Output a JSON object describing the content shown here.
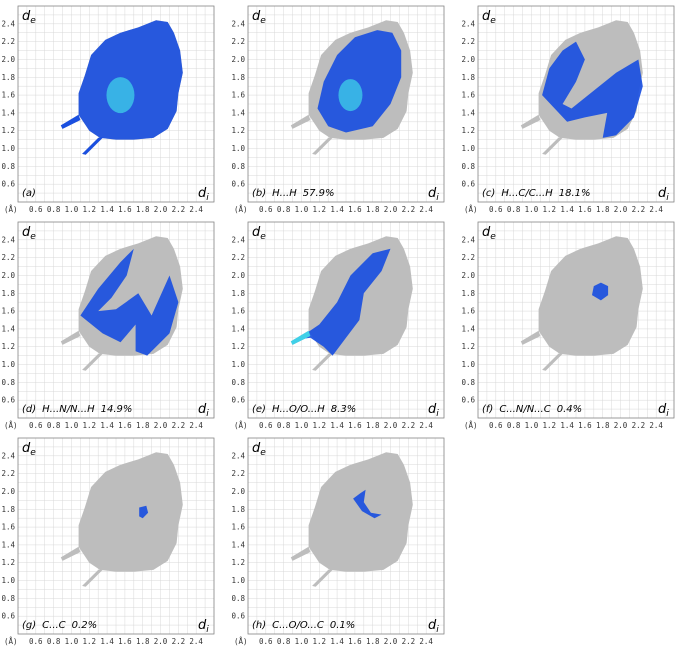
{
  "chart_data": {
    "type": "heatmap",
    "description_axes": {
      "y_axis_label": "d",
      "y_axis_label_sub": "e",
      "x_axis_label": "d",
      "x_axis_label_sub": "i",
      "unit_label": "(Å)",
      "x_ticks": [
        "0.6",
        "0.8",
        "1.0",
        "1.2",
        "1.4",
        "1.6",
        "1.8",
        "2.0",
        "2.2",
        "2.4"
      ],
      "y_ticks": [
        "0.6",
        "0.8",
        "1.0",
        "1.2",
        "1.4",
        "1.6",
        "1.8",
        "2.0",
        "2.2",
        "2.4"
      ],
      "xlim": [
        0.4,
        2.6
      ],
      "ylim": [
        0.4,
        2.6
      ],
      "grid": true
    },
    "colors": {
      "background_fill": "#bdbdbd",
      "highlight": "#1a4fe0",
      "highlight_hot": "#3fd0e8",
      "grid": "#d8d8d8",
      "frame": "#888888"
    },
    "panels": [
      {
        "label": "(a)",
        "contact": "",
        "percent": "",
        "highlight": "full"
      },
      {
        "label": "(b)",
        "contact": "H...H",
        "percent": "57.9%",
        "highlight": "core"
      },
      {
        "label": "(c)",
        "contact": "H...C/C...H",
        "percent": "18.1%",
        "highlight": "wings"
      },
      {
        "label": "(d)",
        "contact": "H...N/N...H",
        "percent": "14.9%",
        "highlight": "forks"
      },
      {
        "label": "(e)",
        "contact": "H...O/O...H",
        "percent": "8.3%",
        "highlight": "spike"
      },
      {
        "label": "(f)",
        "contact": "C...N/N...C",
        "percent": "0.4%",
        "highlight": "small_center"
      },
      {
        "label": "(g)",
        "contact": "C...C",
        "percent": "0.2%",
        "highlight": "tiny_center"
      },
      {
        "label": "(h)",
        "contact": "C...O/O...C",
        "percent": "0.1%",
        "highlight": "arc"
      }
    ]
  }
}
